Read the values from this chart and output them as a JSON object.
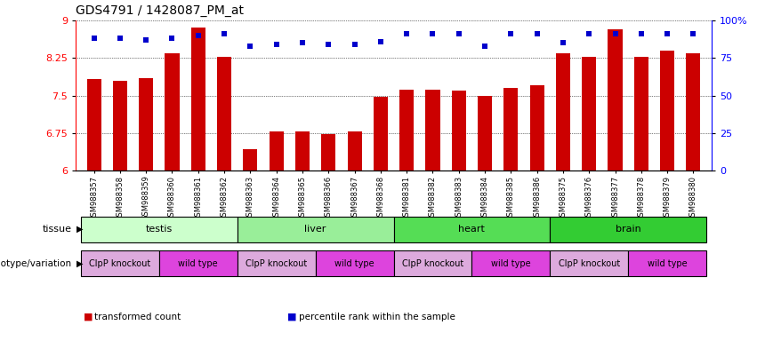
{
  "title": "GDS4791 / 1428087_PM_at",
  "samples": [
    "GSM988357",
    "GSM988358",
    "GSM988359",
    "GSM988360",
    "GSM988361",
    "GSM988362",
    "GSM988363",
    "GSM988364",
    "GSM988365",
    "GSM988366",
    "GSM988367",
    "GSM988368",
    "GSM988381",
    "GSM988382",
    "GSM988383",
    "GSM988384",
    "GSM988385",
    "GSM988386",
    "GSM988375",
    "GSM988376",
    "GSM988377",
    "GSM988378",
    "GSM988379",
    "GSM988380"
  ],
  "bar_values": [
    7.82,
    7.8,
    7.84,
    8.35,
    8.85,
    8.27,
    6.42,
    6.78,
    6.78,
    6.72,
    6.78,
    7.47,
    7.62,
    7.62,
    7.6,
    7.5,
    7.65,
    7.7,
    8.35,
    8.27,
    8.82,
    8.27,
    8.4,
    8.35
  ],
  "percentile_values": [
    88,
    88,
    87,
    88,
    90,
    91,
    83,
    84,
    85,
    84,
    84,
    86,
    91,
    91,
    91,
    83,
    91,
    91,
    85,
    91,
    91,
    91,
    91,
    91
  ],
  "ylim_left": [
    6,
    9
  ],
  "ylim_right": [
    0,
    100
  ],
  "yticks_left": [
    6,
    6.75,
    7.5,
    8.25,
    9
  ],
  "yticks_right": [
    0,
    25,
    50,
    75,
    100
  ],
  "bar_color": "#cc0000",
  "dot_color": "#0000cc",
  "tissue_groups": [
    {
      "label": "testis",
      "start": 0,
      "end": 6,
      "color": "#ccffcc"
    },
    {
      "label": "liver",
      "start": 6,
      "end": 12,
      "color": "#99ee99"
    },
    {
      "label": "heart",
      "start": 12,
      "end": 18,
      "color": "#55dd55"
    },
    {
      "label": "brain",
      "start": 18,
      "end": 24,
      "color": "#33cc33"
    }
  ],
  "genotype_groups": [
    {
      "label": "ClpP knockout",
      "start": 0,
      "end": 3,
      "color": "#ddaadd"
    },
    {
      "label": "wild type",
      "start": 3,
      "end": 6,
      "color": "#dd44dd"
    },
    {
      "label": "ClpP knockout",
      "start": 6,
      "end": 9,
      "color": "#ddaadd"
    },
    {
      "label": "wild type",
      "start": 9,
      "end": 12,
      "color": "#dd44dd"
    },
    {
      "label": "ClpP knockout",
      "start": 12,
      "end": 15,
      "color": "#ddaadd"
    },
    {
      "label": "wild type",
      "start": 15,
      "end": 18,
      "color": "#dd44dd"
    },
    {
      "label": "ClpP knockout",
      "start": 18,
      "end": 21,
      "color": "#ddaadd"
    },
    {
      "label": "wild type",
      "start": 21,
      "end": 24,
      "color": "#dd44dd"
    }
  ],
  "legend_items": [
    {
      "label": "transformed count",
      "color": "#cc0000"
    },
    {
      "label": "percentile rank within the sample",
      "color": "#0000cc"
    }
  ],
  "fig_width": 8.51,
  "fig_height": 3.84,
  "dpi": 100
}
